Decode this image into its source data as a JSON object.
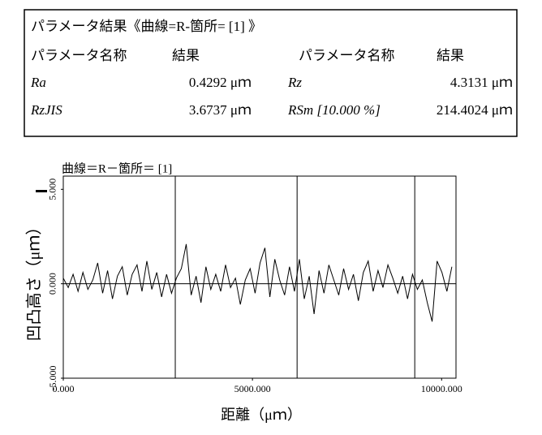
{
  "table": {
    "title": "パラメータ結果《曲線=R-箇所= [1] 》",
    "header": [
      "パラメータ名称",
      "結果",
      "パラメータ名称",
      "結果"
    ],
    "rows": [
      [
        "Ra",
        "0.4292 μｍ",
        "Rz",
        "4.3131 μｍ"
      ],
      [
        "RzJIS",
        "3.6737 μｍ",
        "RSm [10.000 %]",
        "214.4024 μｍ"
      ]
    ]
  },
  "chart_data": {
    "type": "line",
    "title": "曲線＝R－箇所＝ [1]",
    "x_label": "距離（μｍ）",
    "y_label": "凹凸高さ（μｍ）",
    "color": "#000000",
    "x": [
      0,
      130,
      260,
      390,
      520,
      650,
      780,
      910,
      1040,
      1170,
      1300,
      1430,
      1560,
      1690,
      1820,
      1950,
      2080,
      2210,
      2340,
      2470,
      2600,
      2730,
      2860,
      2990,
      3120,
      3250,
      3380,
      3510,
      3640,
      3770,
      3900,
      4030,
      4160,
      4290,
      4420,
      4550,
      4680,
      4810,
      4940,
      5070,
      5200,
      5330,
      5460,
      5590,
      5720,
      5850,
      5980,
      6110,
      6240,
      6370,
      6500,
      6630,
      6760,
      6890,
      7020,
      7150,
      7280,
      7410,
      7540,
      7670,
      7800,
      7930,
      8060,
      8190,
      8320,
      8450,
      8580,
      8710,
      8840,
      8970,
      9100,
      9230,
      9360,
      9490,
      9620,
      9750,
      9880,
      10010,
      10140,
      10270
    ],
    "values": [
      0.3,
      -0.2,
      0.5,
      -0.4,
      0.6,
      -0.3,
      0.2,
      1.1,
      -0.5,
      0.7,
      -0.8,
      0.4,
      0.9,
      -0.6,
      0.5,
      1.0,
      -0.4,
      1.2,
      -0.3,
      0.6,
      -0.7,
      0.5,
      -0.5,
      0.3,
      0.8,
      2.1,
      -0.6,
      0.4,
      -1.0,
      0.9,
      -0.3,
      0.5,
      -0.4,
      1.0,
      -0.2,
      0.3,
      -1.1,
      0.2,
      0.8,
      -0.5,
      1.1,
      1.9,
      -0.7,
      1.3,
      0.2,
      -0.6,
      0.9,
      -0.4,
      1.3,
      -0.8,
      0.4,
      -1.6,
      0.7,
      -0.5,
      1.0,
      0.2,
      -0.6,
      0.8,
      -0.3,
      0.5,
      -0.9,
      0.6,
      1.2,
      -0.4,
      0.7,
      -0.2,
      1.0,
      0.3,
      -0.5,
      0.4,
      -0.8,
      0.5,
      -0.3,
      0.2,
      -1.0,
      -2.0,
      1.2,
      0.6,
      -0.4,
      0.9
    ],
    "vlines": [
      2960,
      6180,
      9290
    ],
    "xlim": [
      0,
      10380
    ],
    "ylim": [
      -5,
      5.7
    ],
    "xticks": [
      {
        "value": 0,
        "label": "0.000"
      },
      {
        "value": 5000,
        "label": "5000.000"
      },
      {
        "value": 10000,
        "label": "10000.000"
      }
    ],
    "yticks": [
      {
        "value": -5,
        "label": "-5.000"
      },
      {
        "value": 0,
        "label": "0.000"
      },
      {
        "value": 5,
        "label": "5.000"
      }
    ],
    "zero_line": true
  }
}
